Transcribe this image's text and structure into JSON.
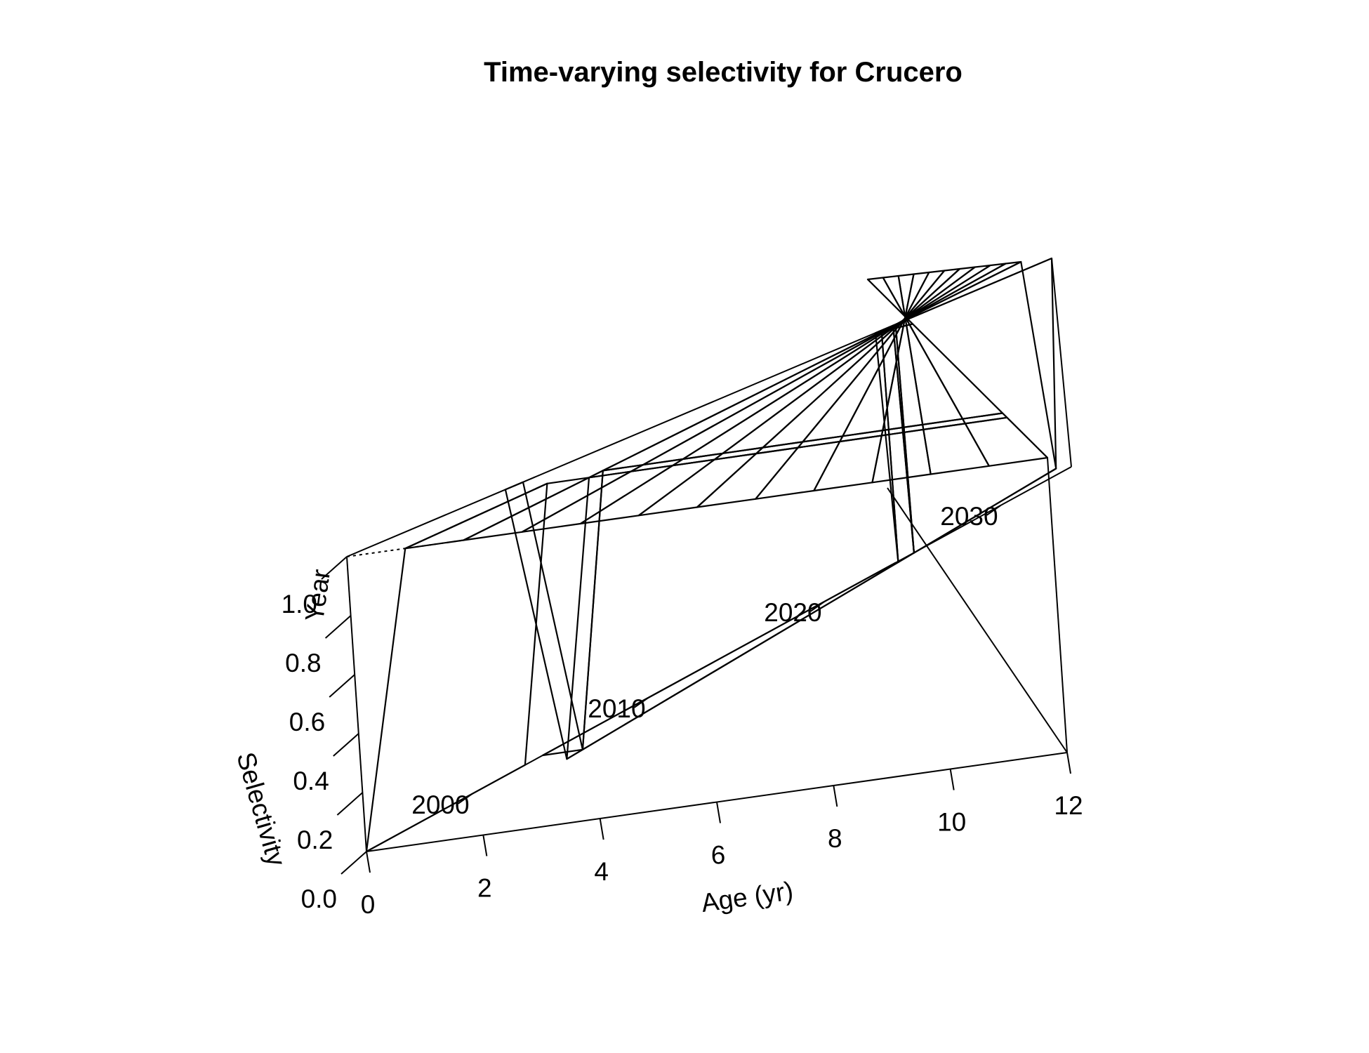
{
  "chart_data": {
    "type": "surface-3d",
    "title": "Time-varying selectivity for Crucero",
    "xlabel": "Age (yr)",
    "ylabel": "Year",
    "zlabel": "Selectivity",
    "x_ticks": [
      "0",
      "2",
      "4",
      "6",
      "8",
      "10",
      "12"
    ],
    "y_ticks": [
      "2000",
      "2010",
      "2020",
      "2030"
    ],
    "z_ticks": [
      "0.0",
      "0.2",
      "0.4",
      "0.6",
      "0.8",
      "1.0"
    ],
    "ages": [
      0,
      1,
      2,
      3,
      4,
      5,
      6,
      7,
      8,
      9,
      10,
      11,
      12
    ],
    "year_breaks": [
      2003,
      2004,
      2024,
      2025
    ],
    "selectivity_periods": [
      {
        "years": [
          1994,
          2003
        ],
        "selectivity": [
          0,
          1,
          1,
          1,
          1,
          1,
          1,
          1,
          1,
          1,
          1,
          1,
          1
        ]
      },
      {
        "years": [
          2004,
          2024
        ],
        "selectivity": [
          0,
          0,
          1,
          1,
          1,
          1,
          1,
          1,
          1,
          1,
          1,
          1,
          1
        ]
      },
      {
        "years": [
          2025,
          2034
        ],
        "selectivity": [
          1,
          0,
          1,
          1,
          1,
          1,
          1,
          1,
          1,
          1,
          1,
          1,
          1
        ]
      }
    ],
    "xlim": [
      0,
      12
    ],
    "ylim": [
      1994,
      2034
    ],
    "zlim": [
      0,
      1
    ]
  }
}
